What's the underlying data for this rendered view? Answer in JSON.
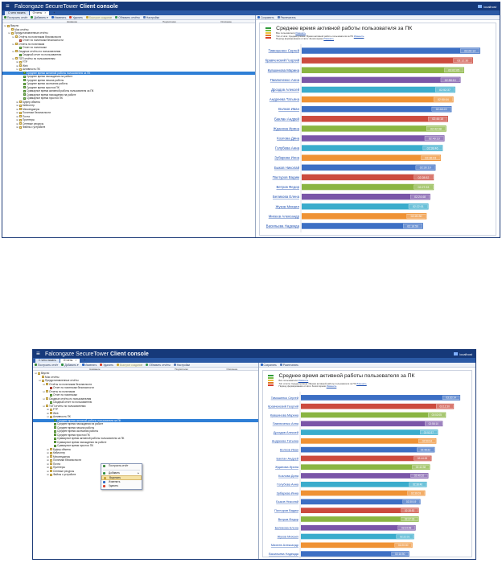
{
  "app": {
    "title_brand": "Falcongaze SecureTower",
    "title_bold": "Client console",
    "host": "localhost"
  },
  "tabs": [
    {
      "label": "С чего начать"
    },
    {
      "label": "Отчеты"
    }
  ],
  "tab_add": "+",
  "tab_close": "×",
  "left_toolbar": [
    {
      "label": "Построить отчёт",
      "color": "#3a8a3a"
    },
    {
      "label": "Добавить ▾",
      "color": "#2d8f3e"
    },
    {
      "label": "Изменить",
      "color": "#2b67c4"
    },
    {
      "label": "Удалить",
      "color": "#d9402b"
    },
    {
      "label": "Быстрое создание",
      "color": "#c9a437",
      "disabled": true
    },
    {
      "label": "Обновить отчёты",
      "color": "#3c9a52"
    },
    {
      "label": "Настройки",
      "color": "#5a7db8"
    }
  ],
  "columns": [
    "Название",
    "Подписчики",
    "Описание"
  ],
  "tree": [
    {
      "label": "Вкусно",
      "depth": 0,
      "exp": "⊟",
      "icon": "folder"
    },
    {
      "label": "Мои отчёты",
      "depth": 1,
      "exp": "",
      "icon": "folder"
    },
    {
      "label": "Предустановленные отчёты",
      "depth": 1,
      "exp": "⊟",
      "icon": "folder"
    },
    {
      "label": "Отчёты по политикам безопасности",
      "depth": 2,
      "exp": "⊟",
      "icon": "folder"
    },
    {
      "label": "Отчет по политикам безопасности",
      "depth": 3,
      "exp": "",
      "icon": "red"
    },
    {
      "label": "Отчеты по политикам",
      "depth": 2,
      "exp": "⊟",
      "icon": "folder"
    },
    {
      "label": "Отчет по политикам",
      "depth": 3,
      "exp": "",
      "icon": "rep"
    },
    {
      "label": "Сводные отчёты по пользователям",
      "depth": 2,
      "exp": "⊟",
      "icon": "folder"
    },
    {
      "label": "Сводный отчет по пользователю",
      "depth": 3,
      "exp": "",
      "icon": "rep"
    },
    {
      "label": "ТОП отчёты по пользователям",
      "depth": 2,
      "exp": "⊟",
      "icon": "folder"
    },
    {
      "label": "FTP",
      "depth": 3,
      "exp": "⊞",
      "icon": "folder"
    },
    {
      "label": "Web",
      "depth": 3,
      "exp": "⊞",
      "icon": "folder"
    },
    {
      "label": "Активность ПК",
      "depth": 3,
      "exp": "⊟",
      "icon": "folder"
    },
    {
      "label": "Среднее время активной работы пользователя за ПК",
      "depth": 4,
      "exp": "",
      "icon": "rep",
      "selected": true
    },
    {
      "label": "Среднее время нахождения на работе",
      "depth": 4,
      "exp": "",
      "icon": "rep"
    },
    {
      "label": "Среднее время начала работы",
      "depth": 4,
      "exp": "",
      "icon": "rep"
    },
    {
      "label": "Среднее время окончания работы",
      "depth": 4,
      "exp": "",
      "icon": "rep"
    },
    {
      "label": "Среднее время простоя ПК",
      "depth": 4,
      "exp": "",
      "icon": "rep"
    },
    {
      "label": "Суммарное время активной работы пользователя за ПК",
      "depth": 4,
      "exp": "",
      "icon": "rep"
    },
    {
      "label": "Суммарное время нахождения на работе",
      "depth": 4,
      "exp": "",
      "icon": "rep"
    },
    {
      "label": "Суммарное время простоя ПК",
      "depth": 4,
      "exp": "",
      "icon": "rep"
    },
    {
      "label": "Буфер обмена",
      "depth": 3,
      "exp": "⊞",
      "icon": "folder"
    },
    {
      "label": "Кейлоггер",
      "depth": 3,
      "exp": "⊞",
      "icon": "folder"
    },
    {
      "label": "Мессенджеры",
      "depth": 3,
      "exp": "⊞",
      "icon": "folder"
    },
    {
      "label": "Политики безопасности",
      "depth": 3,
      "exp": "⊞",
      "icon": "folder"
    },
    {
      "label": "Почта",
      "depth": 3,
      "exp": "⊞",
      "icon": "folder"
    },
    {
      "label": "Принтеры",
      "depth": 3,
      "exp": "⊞",
      "icon": "folder"
    },
    {
      "label": "Сетевые ресурсы",
      "depth": 3,
      "exp": "⊞",
      "icon": "folder"
    },
    {
      "label": "Файлы с устройств",
      "depth": 3,
      "exp": "⊞",
      "icon": "folder"
    }
  ],
  "right_toolbar": [
    {
      "label": "Сохранить",
      "color": "#2b67c4"
    },
    {
      "label": "Распечатать",
      "color": "#5a7db8"
    }
  ],
  "report": {
    "title": "Среднее время активной работы пользователя за ПК",
    "meta": [
      {
        "label": "Все пользователи",
        "link": "Изменить"
      },
      {
        "label": "Тип отчёта: Среднепупкина / Время активной работы пользователя за ПК",
        "link": "Изменить"
      },
      {
        "label": "Период формирования отчёта: За всё время",
        "link": "Изменить"
      }
    ],
    "logo_colors": [
      "#2f9c3a",
      "#7cc04a",
      "#f0c23a",
      "#e07a2c",
      "#d8402c"
    ]
  },
  "chart_data": {
    "type": "bar",
    "orientation": "horizontal",
    "categories": [
      "Тимошенко Сергей",
      "Кравченский Георгий",
      "Кувшинова Марина",
      "Павлюченко Анна",
      "Дроздов Алексей",
      "Андреева Татьяна",
      "Волков Иван",
      "Баклан Андрей",
      "Жданова Ирина",
      "Козлова Дина",
      "Голубева Анна",
      "Зубарева Инна",
      "Быков Николай",
      "Пахтуров Вадим",
      "Ветров Федор",
      "Беликова Елена",
      "Жуков Михаил",
      "Михеев Александр",
      "Васильева Надежда"
    ],
    "values": [
      100,
      96,
      91,
      89,
      86,
      85,
      84,
      82,
      81,
      80,
      79,
      78,
      75,
      74,
      74,
      72,
      71,
      70,
      68
    ],
    "value_labels": [
      "03:20:14",
      "03:12:30",
      "03:02:05",
      "02:58:10",
      "02:52:37",
      "02:50:04",
      "02:48:22",
      "02:44:15",
      "02:42:38",
      "02:40:10",
      "02:38:46",
      "02:36:03",
      "02:30:19",
      "02:28:52",
      "02:27:33",
      "02:24:48",
      "02:22:01",
      "02:20:30",
      "02:16:50"
    ],
    "colors": [
      "#3c6fc4",
      "#cc4b3e",
      "#8ab542",
      "#7a56a8",
      "#3aaccc",
      "#ef9234"
    ],
    "xlim": [
      0,
      105
    ]
  },
  "context_menu": {
    "items": [
      {
        "label": "Построить отчёт",
        "color": "#3a8a3a"
      },
      {
        "sep": true
      },
      {
        "label": "Добавить",
        "color": "#2d8f3e",
        "arrow": "▸"
      },
      {
        "label": "Вырезать",
        "color": "#c9a437",
        "highlight": true
      },
      {
        "label": "Изменить",
        "color": "#2b67c4"
      },
      {
        "label": "Удалить",
        "color": "#d9402b"
      }
    ]
  }
}
